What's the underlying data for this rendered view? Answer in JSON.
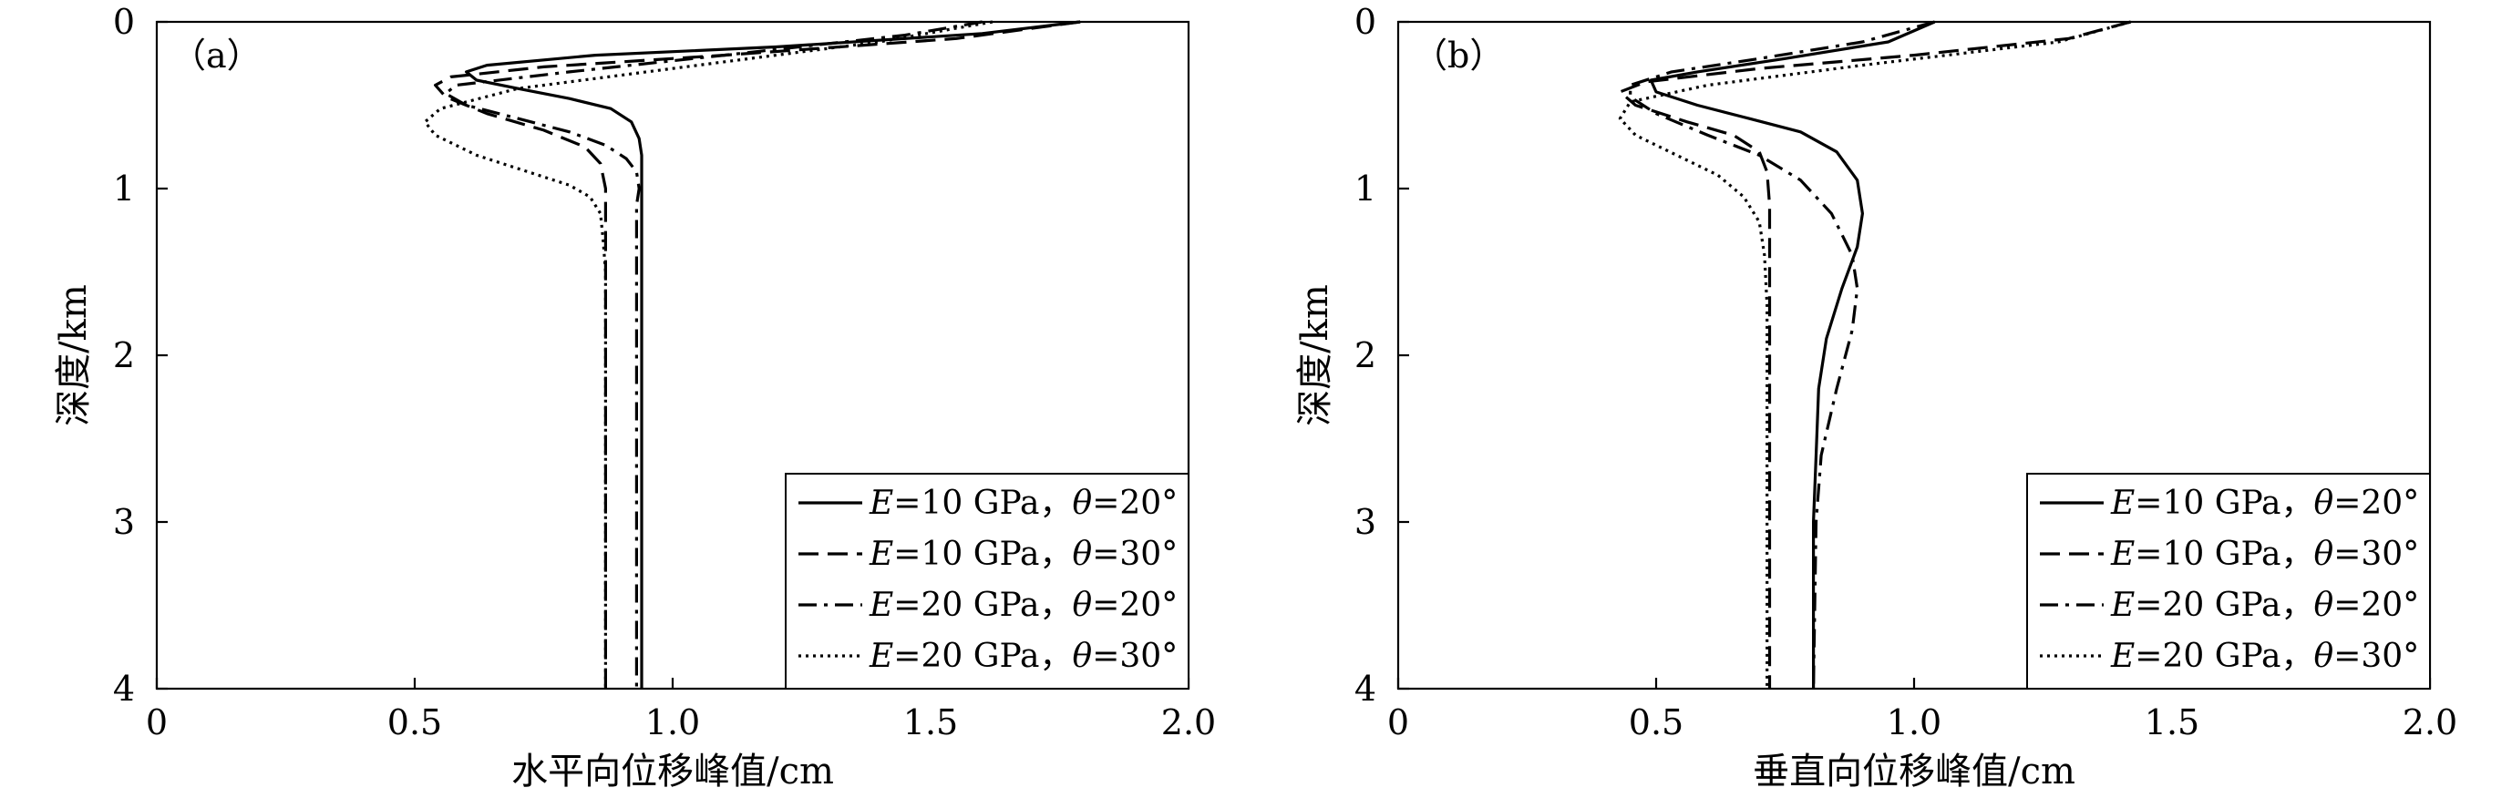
{
  "chart_data": [
    {
      "type": "line",
      "panel_label": "（a）",
      "xlabel": "水平向位移峰值/cm",
      "ylabel": "深度/km",
      "xlim": [
        0,
        2.0
      ],
      "ylim": [
        4,
        0
      ],
      "y_inverted": true,
      "xticks": [
        "0",
        "0.5",
        "1.0",
        "1.5",
        "2.0"
      ],
      "yticks": [
        "0",
        "1",
        "2",
        "3",
        "4"
      ],
      "grid": false,
      "legend_position": "bottom-right",
      "series": [
        {
          "name": "E=10 GPa, θ=20°",
          "legend": {
            "v1": "E",
            "eq1": "=10 GPa，",
            "v2": "θ",
            "eq2": "=20°"
          },
          "style": "solid",
          "points": [
            [
              1.79,
              0
            ],
            [
              1.6,
              0.07
            ],
            [
              1.2,
              0.15
            ],
            [
              0.85,
              0.2
            ],
            [
              0.64,
              0.26
            ],
            [
              0.6,
              0.3
            ],
            [
              0.62,
              0.35
            ],
            [
              0.7,
              0.4
            ],
            [
              0.8,
              0.46
            ],
            [
              0.88,
              0.52
            ],
            [
              0.92,
              0.6
            ],
            [
              0.935,
              0.7
            ],
            [
              0.94,
              0.8
            ],
            [
              0.94,
              1.0
            ],
            [
              0.94,
              2.0
            ],
            [
              0.94,
              3.0
            ],
            [
              0.94,
              4.0
            ]
          ]
        },
        {
          "name": "E=10 GPa, θ=30°",
          "legend": {
            "v1": "E",
            "eq1": "=10 GPa，",
            "v2": "θ",
            "eq2": "=30°"
          },
          "style": "dashed",
          "points": [
            [
              1.79,
              0
            ],
            [
              1.55,
              0.1
            ],
            [
              1.1,
              0.2
            ],
            [
              0.75,
              0.27
            ],
            [
              0.57,
              0.33
            ],
            [
              0.54,
              0.38
            ],
            [
              0.56,
              0.45
            ],
            [
              0.64,
              0.55
            ],
            [
              0.75,
              0.65
            ],
            [
              0.83,
              0.75
            ],
            [
              0.86,
              0.85
            ],
            [
              0.87,
              1.0
            ],
            [
              0.87,
              1.2
            ],
            [
              0.87,
              2.0
            ],
            [
              0.87,
              3.0
            ],
            [
              0.87,
              4.0
            ]
          ]
        },
        {
          "name": "E=20 GPa, θ=20°",
          "legend": {
            "v1": "E",
            "eq1": "=20 GPa，",
            "v2": "θ",
            "eq2": "=20°"
          },
          "style": "dashdot",
          "points": [
            [
              1.6,
              0
            ],
            [
              1.45,
              0.08
            ],
            [
              1.1,
              0.2
            ],
            [
              0.8,
              0.3
            ],
            [
              0.58,
              0.38
            ],
            [
              0.56,
              0.43
            ],
            [
              0.6,
              0.5
            ],
            [
              0.7,
              0.58
            ],
            [
              0.8,
              0.66
            ],
            [
              0.87,
              0.74
            ],
            [
              0.91,
              0.82
            ],
            [
              0.93,
              0.9
            ],
            [
              0.935,
              1.0
            ],
            [
              0.93,
              1.1
            ],
            [
              0.93,
              1.2
            ],
            [
              0.93,
              2.0
            ],
            [
              0.93,
              3.0
            ],
            [
              0.93,
              4.0
            ]
          ]
        },
        {
          "name": "E=20 GPa, θ=30°",
          "legend": {
            "v1": "E",
            "eq1": "=20 GPa，",
            "v2": "θ",
            "eq2": "=30°"
          },
          "style": "dotted",
          "points": [
            [
              1.62,
              0
            ],
            [
              1.4,
              0.12
            ],
            [
              1.0,
              0.28
            ],
            [
              0.7,
              0.4
            ],
            [
              0.55,
              0.52
            ],
            [
              0.52,
              0.6
            ],
            [
              0.54,
              0.68
            ],
            [
              0.62,
              0.8
            ],
            [
              0.72,
              0.9
            ],
            [
              0.8,
              0.98
            ],
            [
              0.84,
              1.05
            ],
            [
              0.86,
              1.15
            ],
            [
              0.865,
              1.3
            ],
            [
              0.87,
              1.5
            ],
            [
              0.87,
              2.0
            ],
            [
              0.87,
              3.0
            ],
            [
              0.87,
              4.0
            ]
          ]
        }
      ]
    },
    {
      "type": "line",
      "panel_label": "（b）",
      "xlabel": "垂直向位移峰值/cm",
      "ylabel": "深度/km",
      "xlim": [
        0,
        2.0
      ],
      "ylim": [
        4,
        0
      ],
      "y_inverted": true,
      "xticks": [
        "0",
        "0.5",
        "1.0",
        "1.5",
        "2.0"
      ],
      "yticks": [
        "0",
        "1",
        "2",
        "3",
        "4"
      ],
      "grid": false,
      "legend_position": "bottom-right",
      "series": [
        {
          "name": "E=10 GPa, θ=20°",
          "legend": {
            "v1": "E",
            "eq1": "=10 GPa，",
            "v2": "θ",
            "eq2": "=20°"
          },
          "style": "solid",
          "points": [
            [
              1.04,
              0
            ],
            [
              0.95,
              0.12
            ],
            [
              0.75,
              0.22
            ],
            [
              0.58,
              0.3
            ],
            [
              0.49,
              0.35
            ],
            [
              0.5,
              0.42
            ],
            [
              0.58,
              0.5
            ],
            [
              0.68,
              0.58
            ],
            [
              0.78,
              0.66
            ],
            [
              0.85,
              0.78
            ],
            [
              0.89,
              0.95
            ],
            [
              0.9,
              1.15
            ],
            [
              0.89,
              1.35
            ],
            [
              0.86,
              1.6
            ],
            [
              0.83,
              1.9
            ],
            [
              0.815,
              2.2
            ],
            [
              0.81,
              2.6
            ],
            [
              0.805,
              3.0
            ],
            [
              0.805,
              4.0
            ]
          ]
        },
        {
          "name": "E=10 GPa, θ=30°",
          "legend": {
            "v1": "E",
            "eq1": "=10 GPa，",
            "v2": "θ",
            "eq2": "=30°"
          },
          "style": "dashed",
          "points": [
            [
              1.42,
              0
            ],
            [
              1.3,
              0.1
            ],
            [
              1.0,
              0.2
            ],
            [
              0.7,
              0.28
            ],
            [
              0.48,
              0.36
            ],
            [
              0.43,
              0.42
            ],
            [
              0.46,
              0.5
            ],
            [
              0.56,
              0.6
            ],
            [
              0.65,
              0.68
            ],
            [
              0.7,
              0.78
            ],
            [
              0.715,
              0.9
            ],
            [
              0.72,
              1.1
            ],
            [
              0.72,
              1.5
            ],
            [
              0.72,
              2.0
            ],
            [
              0.72,
              3.0
            ],
            [
              0.72,
              4.0
            ]
          ]
        },
        {
          "name": "E=20 GPa, θ=20°",
          "legend": {
            "v1": "E",
            "eq1": "=20 GPa，",
            "v2": "θ",
            "eq2": "=20°"
          },
          "style": "dashdot",
          "points": [
            [
              1.04,
              0
            ],
            [
              0.9,
              0.12
            ],
            [
              0.7,
              0.22
            ],
            [
              0.53,
              0.3
            ],
            [
              0.45,
              0.38
            ],
            [
              0.45,
              0.45
            ],
            [
              0.5,
              0.55
            ],
            [
              0.6,
              0.68
            ],
            [
              0.7,
              0.8
            ],
            [
              0.78,
              0.95
            ],
            [
              0.84,
              1.15
            ],
            [
              0.88,
              1.4
            ],
            [
              0.89,
              1.6
            ],
            [
              0.88,
              1.85
            ],
            [
              0.85,
              2.2
            ],
            [
              0.82,
              2.6
            ],
            [
              0.81,
              3.0
            ],
            [
              0.805,
              4.0
            ]
          ]
        },
        {
          "name": "E=20 GPa, θ=30°",
          "legend": {
            "v1": "E",
            "eq1": "=20 GPa，",
            "v2": "θ",
            "eq2": "=30°"
          },
          "style": "dotted",
          "points": [
            [
              1.42,
              0
            ],
            [
              1.28,
              0.12
            ],
            [
              0.9,
              0.26
            ],
            [
              0.6,
              0.38
            ],
            [
              0.45,
              0.48
            ],
            [
              0.43,
              0.58
            ],
            [
              0.46,
              0.68
            ],
            [
              0.54,
              0.8
            ],
            [
              0.62,
              0.92
            ],
            [
              0.67,
              1.05
            ],
            [
              0.7,
              1.2
            ],
            [
              0.71,
              1.4
            ],
            [
              0.715,
              1.7
            ],
            [
              0.715,
              2.0
            ],
            [
              0.715,
              3.0
            ],
            [
              0.715,
              4.0
            ]
          ]
        }
      ]
    }
  ]
}
